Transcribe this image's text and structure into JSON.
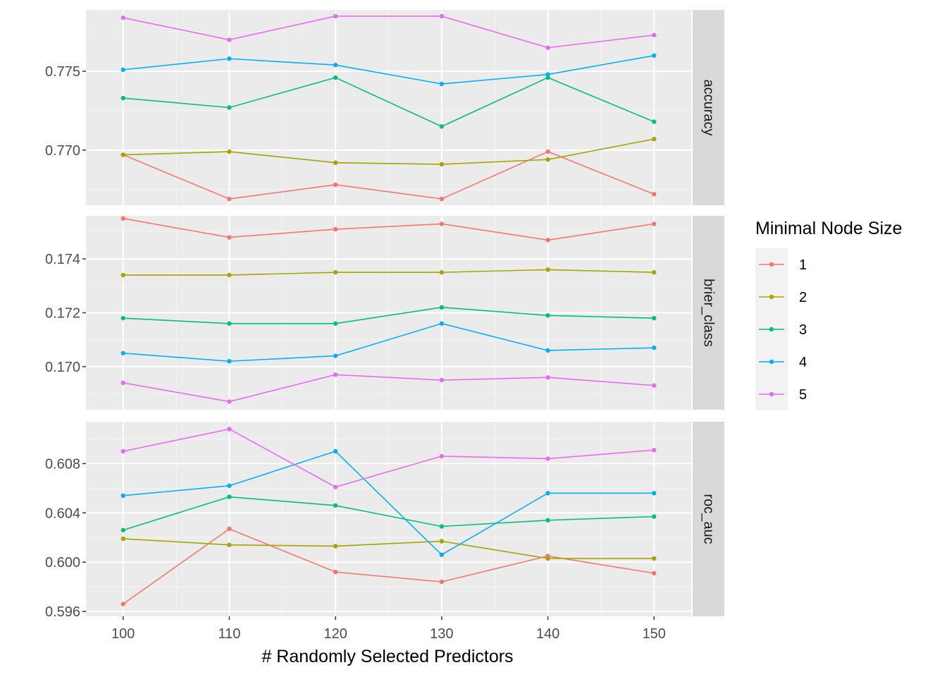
{
  "chart_data": {
    "type": "line",
    "xlabel": "# Randomly Selected Predictors",
    "x": [
      100,
      110,
      120,
      130,
      140,
      150
    ],
    "x_ticks": [
      "100",
      "110",
      "120",
      "130",
      "140",
      "150"
    ],
    "xlim": [
      96.5,
      153.5
    ],
    "legend": {
      "title": "Minimal Node Size",
      "position": "right"
    },
    "series_colors": {
      "1": "#F8766D",
      "2": "#A3A500",
      "3": "#00BF7D",
      "4": "#00B0F6",
      "5": "#E76BF3"
    },
    "grid": true,
    "panels": [
      {
        "strip": "accuracy",
        "ylim": [
          0.7665,
          0.7789
        ],
        "y_ticks": [
          "0.770",
          "0.775"
        ],
        "y_tick_values": [
          0.77,
          0.775
        ],
        "series": [
          {
            "name": "1",
            "values": [
              0.7697,
              0.7669,
              0.7678,
              0.7669,
              0.7699,
              0.7672
            ]
          },
          {
            "name": "2",
            "values": [
              0.7697,
              0.7699,
              0.7692,
              0.7691,
              0.7694,
              0.7707
            ]
          },
          {
            "name": "3",
            "values": [
              0.7733,
              0.7727,
              0.7746,
              0.7715,
              0.7746,
              0.7718
            ]
          },
          {
            "name": "4",
            "values": [
              0.7751,
              0.7758,
              0.7754,
              0.7742,
              0.7748,
              0.776
            ]
          },
          {
            "name": "5",
            "values": [
              0.7784,
              0.777,
              0.7785,
              0.7785,
              0.7765,
              0.7773
            ]
          }
        ]
      },
      {
        "strip": "brier_class",
        "ylim": [
          0.1684,
          0.1756
        ],
        "y_ticks": [
          "0.170",
          "0.172",
          "0.174"
        ],
        "y_tick_values": [
          0.17,
          0.172,
          0.174
        ],
        "series": [
          {
            "name": "1",
            "values": [
              0.1755,
              0.1748,
              0.1751,
              0.1753,
              0.1747,
              0.1753
            ]
          },
          {
            "name": "2",
            "values": [
              0.1734,
              0.1734,
              0.1735,
              0.1735,
              0.1736,
              0.1735
            ]
          },
          {
            "name": "3",
            "values": [
              0.1718,
              0.1716,
              0.1716,
              0.1722,
              0.1719,
              0.1718
            ]
          },
          {
            "name": "4",
            "values": [
              0.1705,
              0.1702,
              0.1704,
              0.1716,
              0.1706,
              0.1707
            ]
          },
          {
            "name": "5",
            "values": [
              0.1694,
              0.1687,
              0.1697,
              0.1695,
              0.1696,
              0.1693
            ]
          }
        ]
      },
      {
        "strip": "roc_auc",
        "ylim": [
          0.5956,
          0.6114
        ],
        "y_ticks": [
          "0.596",
          "0.600",
          "0.604",
          "0.608"
        ],
        "y_tick_values": [
          0.596,
          0.6,
          0.604,
          0.608
        ],
        "series": [
          {
            "name": "1",
            "values": [
              0.5966,
              0.6027,
              0.5992,
              0.5984,
              0.6005,
              0.5991
            ]
          },
          {
            "name": "2",
            "values": [
              0.6019,
              0.6014,
              0.6013,
              0.6017,
              0.6003,
              0.6003
            ]
          },
          {
            "name": "3",
            "values": [
              0.6026,
              0.6053,
              0.6046,
              0.6029,
              0.6034,
              0.6037
            ]
          },
          {
            "name": "4",
            "values": [
              0.6054,
              0.6062,
              0.609,
              0.6006,
              0.6056,
              0.6056
            ]
          },
          {
            "name": "5",
            "values": [
              0.609,
              0.6108,
              0.6061,
              0.6086,
              0.6084,
              0.6091
            ]
          }
        ]
      }
    ]
  }
}
